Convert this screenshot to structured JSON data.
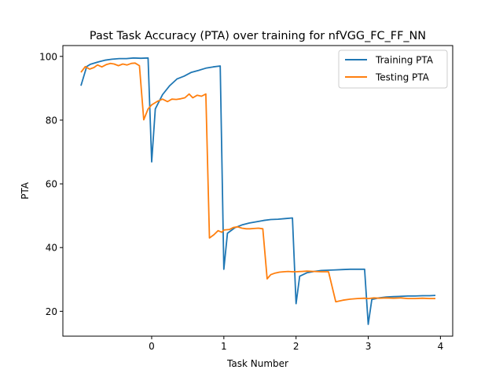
{
  "chart_data": {
    "type": "line",
    "title": "Past Task Accuracy (PTA) over training for nfVGG_FC_FF_NN",
    "xlabel": "Task Number",
    "ylabel": "PTA",
    "xlim": [
      -1.23,
      4.17
    ],
    "ylim": [
      12.2,
      103.4
    ],
    "xticks": [
      0,
      1,
      2,
      3,
      4
    ],
    "yticks": [
      20,
      40,
      60,
      80,
      100
    ],
    "grid": false,
    "legend_position": "top-right",
    "series": [
      {
        "name": "Training PTA",
        "color": "#1f77b4",
        "x": [
          -0.98,
          -0.9,
          -0.85,
          -0.75,
          -0.65,
          -0.55,
          -0.45,
          -0.35,
          -0.25,
          -0.15,
          -0.05,
          0.0,
          0.05,
          0.15,
          0.25,
          0.35,
          0.45,
          0.55,
          0.65,
          0.75,
          0.85,
          0.95,
          1.0,
          1.05,
          1.15,
          1.25,
          1.35,
          1.45,
          1.55,
          1.65,
          1.75,
          1.85,
          1.95,
          2.0,
          2.05,
          2.15,
          2.25,
          2.35,
          2.45,
          2.55,
          2.65,
          2.75,
          2.85,
          2.95,
          3.0,
          3.05,
          3.15,
          3.25,
          3.35,
          3.45,
          3.55,
          3.65,
          3.75,
          3.85,
          3.93
        ],
        "y": [
          90.8,
          96.8,
          97.5,
          98.2,
          98.8,
          99.1,
          99.3,
          99.3,
          99.5,
          99.4,
          99.5,
          66.9,
          83.5,
          88.0,
          90.8,
          92.9,
          93.8,
          95.0,
          95.6,
          96.3,
          96.7,
          97.0,
          33.2,
          44.5,
          46.2,
          47.1,
          47.7,
          48.1,
          48.5,
          48.8,
          48.9,
          49.1,
          49.3,
          22.4,
          31.0,
          32.1,
          32.5,
          32.8,
          32.9,
          33.0,
          33.1,
          33.2,
          33.2,
          33.2,
          15.9,
          23.7,
          24.2,
          24.5,
          24.6,
          24.7,
          24.8,
          24.8,
          24.9,
          24.9,
          25.0
        ]
      },
      {
        "name": "Testing PTA",
        "color": "#ff7f0e",
        "x": [
          -0.98,
          -0.92,
          -0.86,
          -0.8,
          -0.75,
          -0.69,
          -0.63,
          -0.57,
          -0.52,
          -0.46,
          -0.4,
          -0.34,
          -0.28,
          -0.23,
          -0.17,
          -0.11,
          -0.05,
          0.0,
          0.08,
          0.15,
          0.22,
          0.28,
          0.34,
          0.4,
          0.46,
          0.52,
          0.57,
          0.63,
          0.69,
          0.75,
          0.8,
          0.86,
          0.92,
          0.97,
          1.0,
          1.08,
          1.13,
          1.19,
          1.25,
          1.31,
          1.36,
          1.42,
          1.48,
          1.54,
          1.6,
          1.65,
          1.71,
          1.77,
          1.83,
          1.89,
          1.95,
          2.0,
          2.08,
          2.15,
          2.25,
          2.35,
          2.45,
          2.55,
          2.65,
          2.75,
          2.85,
          2.95,
          3.0,
          3.08,
          3.15,
          3.25,
          3.35,
          3.45,
          3.55,
          3.65,
          3.75,
          3.85,
          3.93
        ],
        "y": [
          95.0,
          96.8,
          96.0,
          96.5,
          97.3,
          96.7,
          97.4,
          97.8,
          97.6,
          97.1,
          97.6,
          97.3,
          97.8,
          97.9,
          97.1,
          80.1,
          83.5,
          84.8,
          85.9,
          86.6,
          85.8,
          86.6,
          86.5,
          86.7,
          87.0,
          88.2,
          87.0,
          87.8,
          87.5,
          88.2,
          43.0,
          44.0,
          45.3,
          44.8,
          45.5,
          45.7,
          46.3,
          46.5,
          46.1,
          45.9,
          45.9,
          46.0,
          46.1,
          45.9,
          30.2,
          31.5,
          32.0,
          32.3,
          32.4,
          32.5,
          32.4,
          32.4,
          32.5,
          32.6,
          32.5,
          32.4,
          32.4,
          23.0,
          23.5,
          23.8,
          24.0,
          24.1,
          24.0,
          24.2,
          24.1,
          24.2,
          24.1,
          24.2,
          24.0,
          24.0,
          24.1,
          24.0,
          24.0
        ]
      }
    ]
  }
}
